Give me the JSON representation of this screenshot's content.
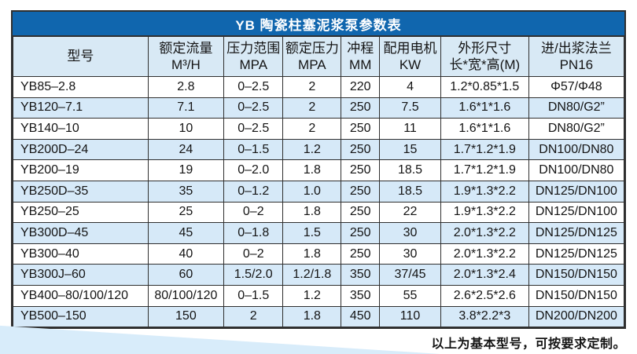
{
  "page": {
    "title": "YB 陶瓷柱塞泥浆泵参数表",
    "footer_note": "以上为基本型号，可按要求定制。"
  },
  "colors": {
    "title_bar_bg": "#1066ae",
    "title_text": "#ffffff",
    "header_row_bg": "#d8e9f5",
    "stripe_row_bg": "#d6e9f8",
    "row_bg": "#ffffff",
    "border": "#2f2f2f",
    "text": "#141414",
    "wedge": "#d8ecfa"
  },
  "table": {
    "columns": [
      {
        "line1": "型号",
        "line2": ""
      },
      {
        "line1": "额定流量",
        "line2": "M³/H"
      },
      {
        "line1": "压力范围",
        "line2": "MPA"
      },
      {
        "line1": "额定压力",
        "line2": "MPA"
      },
      {
        "line1": "冲程",
        "line2": "MM"
      },
      {
        "line1": "配用电机",
        "line2": "KW"
      },
      {
        "line1": "外形尺寸",
        "line2": "长*宽*高(M)"
      },
      {
        "line1": "进/出浆法兰",
        "line2": "PN16"
      }
    ],
    "col_widths_pct": [
      22.1,
      12.4,
      9.7,
      9.5,
      6.3,
      10.0,
      14.4,
      15.6
    ],
    "rows": [
      [
        "YB85–2.8",
        "2.8",
        "0–2.5",
        "2",
        "220",
        "4",
        "1.2*0.85*1.5",
        "Φ57/Φ48"
      ],
      [
        "YB120–7.1",
        "7.1",
        "0–2.5",
        "2",
        "250",
        "7.5",
        "1.6*1*1.6",
        "DN80/G2”"
      ],
      [
        "YB140–10",
        "10",
        "0–2.5",
        "2",
        "250",
        "11",
        "1.6*1*1.6",
        "DN80/G2”"
      ],
      [
        "YB200D–24",
        "24",
        "0–1.5",
        "1.2",
        "250",
        "15",
        "1.7*1.2*1.9",
        "DN100/DN80"
      ],
      [
        "YB200–19",
        "19",
        "0–2.0",
        "1.8",
        "250",
        "18.5",
        "1.7*1.2*1.9",
        "DN100/DN80"
      ],
      [
        "YB250D–35",
        "35",
        "0–1.2",
        "1.0",
        "250",
        "18.5",
        "1.9*1.3*2.2",
        "DN125/DN100"
      ],
      [
        "YB250–25",
        "25",
        "0–2",
        "1.8",
        "250",
        "22",
        "1.9*1.3*2.2",
        "DN125/DN100"
      ],
      [
        "YB300D–45",
        "45",
        "0–1.8",
        "1.5",
        "250",
        "30",
        "2.0*1.3*2.2",
        "DN125/DN125"
      ],
      [
        "YB300–40",
        "40",
        "0–2",
        "1.8",
        "250",
        "30",
        "2.0*1.3*2.2",
        "DN125/DN125"
      ],
      [
        "YB300J–60",
        "60",
        "1.5/2.0",
        "1.2/1.8",
        "350",
        "37/45",
        "2.0*1.3*2.4",
        "DN150/DN150"
      ],
      [
        "YB400–80/100/120",
        "80/100/120",
        "0–1.5",
        "1.2",
        "350",
        "55",
        "2.6*2.5*2.6",
        "DN150/DN150"
      ],
      [
        "YB500–150",
        "150",
        "2",
        "1.8",
        "450",
        "110",
        "3.8*2.2*3",
        "DN200/DN200"
      ]
    ]
  }
}
